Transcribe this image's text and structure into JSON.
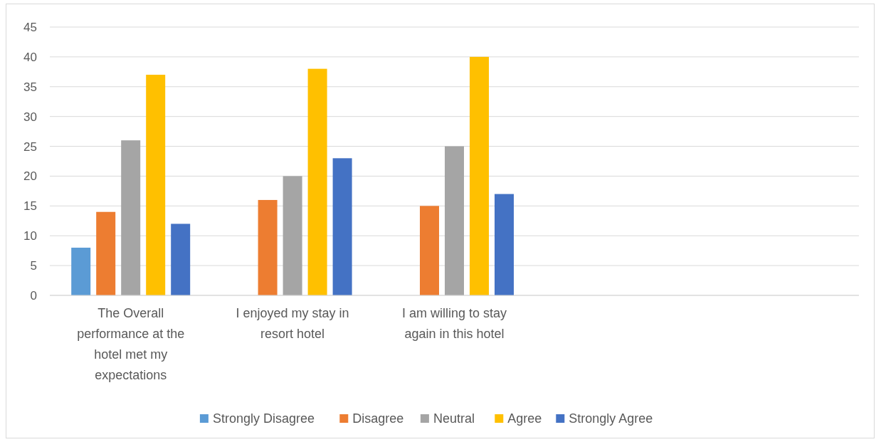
{
  "chart_data": {
    "type": "bar",
    "categories": [
      "The Overall performance at the hotel met my expectations",
      "I enjoyed my stay in resort hotel",
      "I am willing to stay again in this hotel",
      null,
      null
    ],
    "series": [
      {
        "name": "Strongly Disagree",
        "color": "#5b9bd5",
        "values": [
          8,
          0,
          0,
          null,
          null
        ]
      },
      {
        "name": "Disagree",
        "color": "#ed7d31",
        "values": [
          14,
          16,
          15,
          null,
          null
        ]
      },
      {
        "name": "Neutral",
        "color": "#a5a5a5",
        "values": [
          26,
          20,
          25,
          null,
          null
        ]
      },
      {
        "name": "Agree",
        "color": "#ffc000",
        "values": [
          37,
          38,
          40,
          null,
          null
        ]
      },
      {
        "name": "Strongly Agree",
        "color": "#4472c4",
        "values": [
          12,
          23,
          17,
          null,
          null
        ]
      }
    ],
    "ylim": [
      0,
      45
    ],
    "yticks": [
      0,
      5,
      10,
      15,
      20,
      25,
      30,
      35,
      40,
      45
    ],
    "grid": "y",
    "legend": "bottom"
  }
}
